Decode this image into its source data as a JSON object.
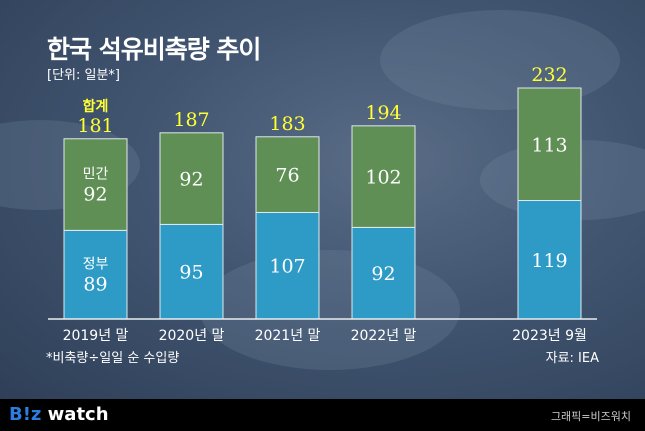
{
  "title": "한국 석유비축량 추이",
  "unit": "[단위: 일분*]",
  "footnote": "*비축량÷일일 순 수입량",
  "source": "자료: IEA",
  "footer": {
    "logo_b": "B!z",
    "logo_rest": " watch",
    "credit": "그래픽=비즈워치"
  },
  "colors": {
    "government": "#2e9bc6",
    "private": "#5f8f55",
    "total_label": "#ffff33",
    "background": "#3d4f6a"
  },
  "chart_data": {
    "type": "bar",
    "stacked": true,
    "categories": [
      "2019년 말",
      "2020년 말",
      "2021년 말",
      "2022년 말",
      "2023년 9월"
    ],
    "series": [
      {
        "name": "정부",
        "values": [
          89,
          95,
          107,
          92,
          119
        ]
      },
      {
        "name": "민간",
        "values": [
          92,
          92,
          76,
          102,
          113
        ]
      }
    ],
    "totals": [
      181,
      187,
      183,
      194,
      232
    ],
    "total_label": "합계",
    "ylim": [
      0,
      232
    ]
  }
}
